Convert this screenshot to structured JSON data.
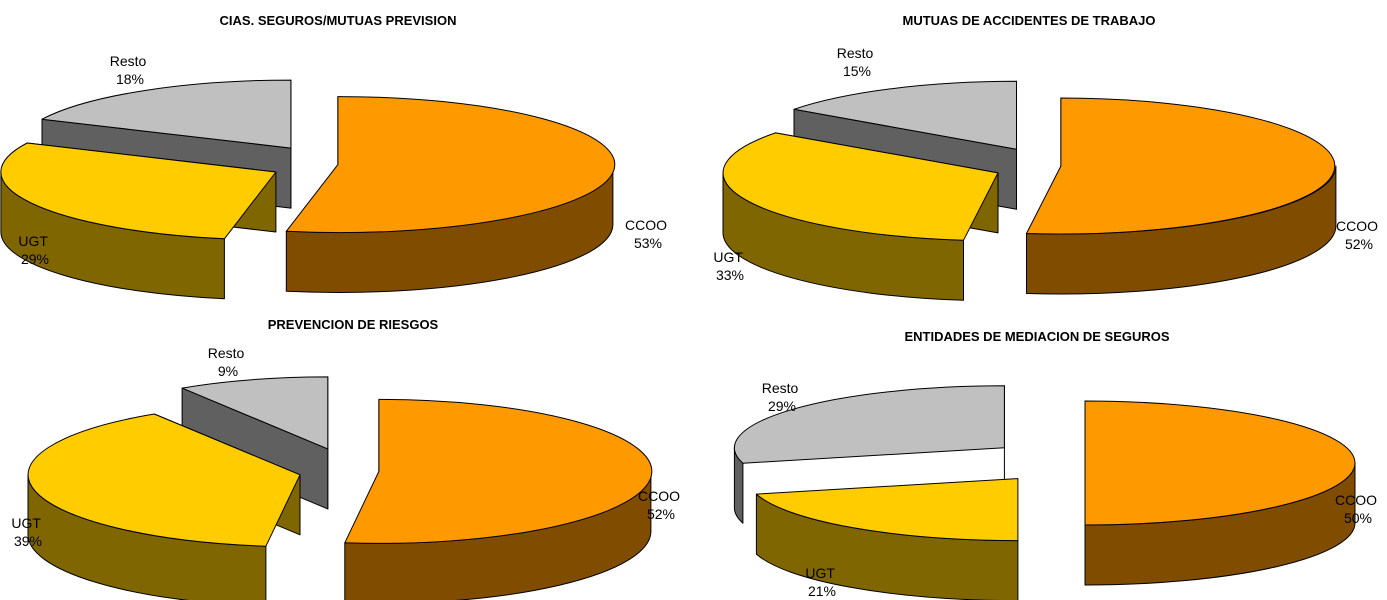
{
  "chart_data": [
    {
      "type": "pie",
      "style": "3d-exploded",
      "title": "CIAS. SEGUROS/MUTUAS PREVISION",
      "slices": [
        {
          "name": "CCOO",
          "value": 53,
          "percent_label": "53%"
        },
        {
          "name": "UGT",
          "value": 29,
          "percent_label": "29%"
        },
        {
          "name": "Resto",
          "value": 18,
          "percent_label": "18%"
        }
      ]
    },
    {
      "type": "pie",
      "style": "3d-exploded",
      "title": "MUTUAS DE ACCIDENTES DE TRABAJO",
      "slices": [
        {
          "name": "CCOO",
          "value": 52,
          "percent_label": "52%"
        },
        {
          "name": "UGT",
          "value": 33,
          "percent_label": "33%"
        },
        {
          "name": "Resto",
          "value": 15,
          "percent_label": "15%"
        }
      ]
    },
    {
      "type": "pie",
      "style": "3d-exploded",
      "title": "PREVENCION DE RIESGOS",
      "slices": [
        {
          "name": "CCOO",
          "value": 52,
          "percent_label": "52%"
        },
        {
          "name": "UGT",
          "value": 39,
          "percent_label": "39%"
        },
        {
          "name": "Resto",
          "value": 9,
          "percent_label": "9%"
        }
      ]
    },
    {
      "type": "pie",
      "style": "3d-exploded",
      "title": "ENTIDADES DE MEDIACION DE SEGUROS",
      "slices": [
        {
          "name": "CCOO",
          "value": 50,
          "percent_label": "50%"
        },
        {
          "name": "UGT",
          "value": 21,
          "percent_label": "21%"
        },
        {
          "name": "Resto",
          "value": 29,
          "percent_label": "29%"
        }
      ]
    }
  ],
  "colors": {
    "CCOO": {
      "top": "#FF9900",
      "side": "#804C00"
    },
    "UGT": {
      "top": "#FFCC00",
      "side": "#806600"
    },
    "Resto": {
      "top": "#C0C0C0",
      "side": "#606060"
    }
  }
}
